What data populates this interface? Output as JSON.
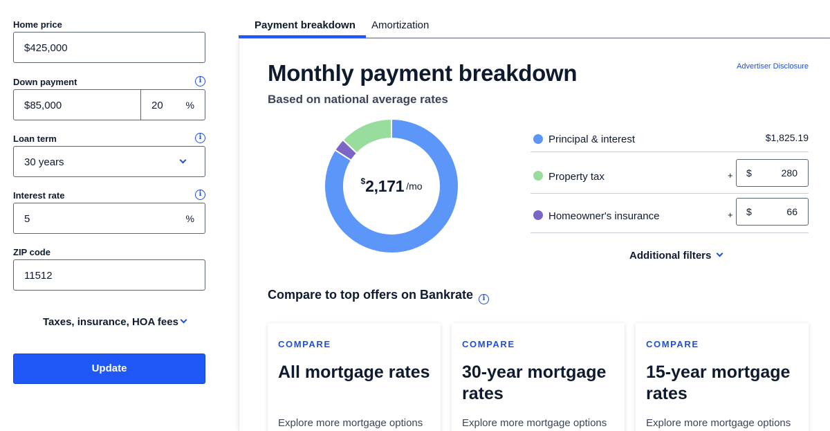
{
  "form": {
    "home_price": {
      "label": "Home price",
      "value": "$425,000"
    },
    "down_payment": {
      "label": "Down payment",
      "value": "$85,000",
      "percent": "20",
      "percent_sign": "%"
    },
    "loan_term": {
      "label": "Loan term",
      "value": "30 years"
    },
    "interest_rate": {
      "label": "Interest rate",
      "value": "5",
      "percent_sign": "%"
    },
    "zip_code": {
      "label": "ZIP code",
      "value": "11512"
    },
    "info_glyph": "i",
    "taxes_link": "Taxes, insurance, HOA fees",
    "update_label": "Update"
  },
  "tabs": [
    {
      "label": "Payment breakdown",
      "active": true
    },
    {
      "label": "Amortization",
      "active": false
    }
  ],
  "breakdown": {
    "title": "Monthly payment breakdown",
    "subtitle": "Based on national average rates",
    "disclosure": "Advertiser Disclosure",
    "total_currency": "$",
    "total_amount": "2,171",
    "total_unit": "/mo",
    "items": [
      {
        "label": "Principal & interest",
        "value": "$1,825.19",
        "color": "#5b96f8"
      },
      {
        "label": "Property tax",
        "plus": "+",
        "currency": "$",
        "value": "280",
        "color": "#98dd9d"
      },
      {
        "label": "Homeowner's insurance",
        "plus": "+",
        "currency": "$",
        "value": "66",
        "color": "#7b66c6"
      }
    ],
    "donut_values": [
      1825.19,
      66,
      280
    ],
    "donut_colors": [
      "#5b96f8",
      "#7b66c6",
      "#98dd9d"
    ],
    "additional_filters": "Additional filters"
  },
  "compare": {
    "heading": "Compare to top offers on Bankrate",
    "cards": [
      {
        "kicker": "COMPARE",
        "title": "All mortgage rates",
        "desc": "Explore more mortgage options"
      },
      {
        "kicker": "COMPARE",
        "title": "30-year mortgage rates",
        "desc": "Explore more mortgage options"
      },
      {
        "kicker": "COMPARE",
        "title": "15-year mortgage rates",
        "desc": "Explore more mortgage options"
      }
    ]
  },
  "colors": {
    "accent": "#1f58f6",
    "link": "#1f4fd8",
    "text": "#0e1a2d"
  },
  "icons": [
    "info-icon",
    "chevron-down-icon"
  ]
}
